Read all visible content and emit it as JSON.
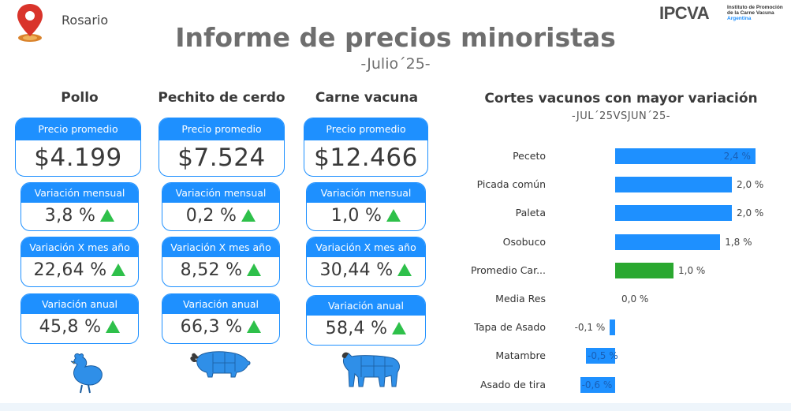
{
  "header": {
    "city": "Rosario",
    "title": "Informe de precios minoristas",
    "subtitle": "-Julio´25-",
    "logo": {
      "brand": "IPCVA",
      "line1": "Instituto de Promoción",
      "line2": "de la Carne Vacuna",
      "line3": "Argentina"
    }
  },
  "colors": {
    "accent": "#1e90ff",
    "up": "#2ec04a",
    "highlight_bar": "#2aa830"
  },
  "products": [
    {
      "name": "Pollo",
      "price_label": "Precio promedio",
      "price": "$4.199",
      "monthly_label": "Variación mensual",
      "monthly": "3,8 %",
      "yoy_month_label": "Variación X mes año",
      "yoy_month": "22,64 %",
      "annual_label": "Variación anual",
      "annual": "45,8 %",
      "icon": "chicken-icon"
    },
    {
      "name": "Pechito de cerdo",
      "price_label": "Precio promedio",
      "price": "$7.524",
      "monthly_label": "Variación mensual",
      "monthly": "0,2 %",
      "yoy_month_label": "Variación X mes año",
      "yoy_month": "8,52 %",
      "annual_label": "Variación anual",
      "annual": "66,3 %",
      "icon": "pig-icon"
    },
    {
      "name": "Carne vacuna",
      "price_label": "Precio promedio",
      "price": "$12.466",
      "monthly_label": "Variación mensual",
      "monthly": "1,0 %",
      "yoy_month_label": "Variación X mes año",
      "yoy_month": "30,44 %",
      "annual_label": "Variación anual",
      "annual": "58,4 %",
      "icon": "cow-icon"
    }
  ],
  "chart_data": {
    "type": "bar",
    "orientation": "horizontal",
    "title": "Cortes vacunos con mayor variación",
    "subtitle": "-JUL´25VSJUN´25-",
    "categories": [
      "Peceto",
      "Picada común",
      "Paleta",
      "Osobuco",
      "Promedio Car...",
      "Media Res",
      "Tapa de Asado",
      "Matambre",
      "Asado de tira"
    ],
    "values": [
      2.4,
      2.0,
      2.0,
      1.8,
      1.0,
      0.0,
      -0.1,
      -0.5,
      -0.6
    ],
    "value_labels": [
      "2,4 %",
      "2,0 %",
      "2,0 %",
      "1,8 %",
      "1,0 %",
      "0,0 %",
      "-0,1 %",
      "-0,5 %",
      "-0,6 %"
    ],
    "highlight_category": "Promedio Car...",
    "grid": false
  }
}
